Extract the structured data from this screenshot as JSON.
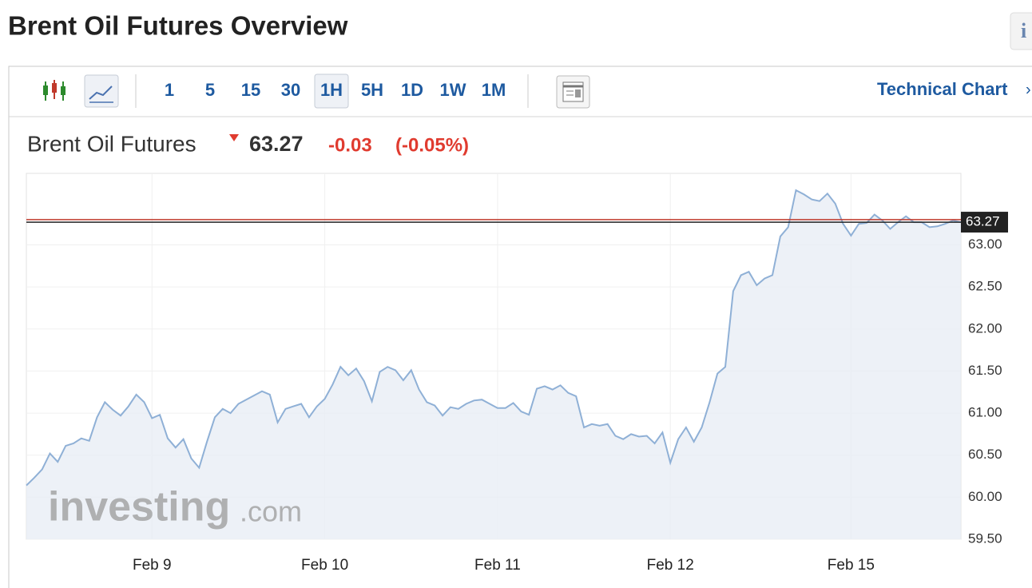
{
  "header": {
    "title": "Brent Oil Futures Overview",
    "info": "i"
  },
  "toolbar": {
    "intervals": [
      "1",
      "5",
      "15",
      "30",
      "1H",
      "5H",
      "1D",
      "1W",
      "1M"
    ],
    "active_interval": "1H",
    "technical_chart": "Technical Chart",
    "chevron": "›"
  },
  "quote": {
    "name": "Brent Oil Futures",
    "price": 63.27,
    "change": -0.03,
    "change_pct": "(-0.05%)"
  },
  "watermark": {
    "brand": "investing",
    "suffix": ".com"
  },
  "chart_data": {
    "type": "area",
    "color": "#8fb0d6",
    "fill": "#e8edf5",
    "categories": [
      null,
      null,
      null,
      null,
      null,
      null,
      null,
      null,
      null,
      null,
      null,
      null,
      null,
      null,
      null,
      null,
      "Feb 9",
      null,
      null,
      null,
      null,
      null,
      null,
      null,
      null,
      null,
      null,
      null,
      null,
      null,
      null,
      null,
      null,
      null,
      null,
      null,
      null,
      null,
      "Feb 10",
      null,
      null,
      null,
      null,
      null,
      null,
      null,
      null,
      null,
      null,
      null,
      null,
      null,
      null,
      null,
      null,
      null,
      null,
      null,
      null,
      null,
      "Feb 11",
      null,
      null,
      null,
      null,
      null,
      null,
      null,
      null,
      null,
      null,
      null,
      null,
      null,
      null,
      null,
      null,
      null,
      null,
      null,
      null,
      null,
      "Feb 12",
      null,
      null,
      null,
      null,
      null,
      null,
      null,
      null,
      null,
      null,
      null,
      null,
      null,
      null,
      null,
      null,
      null,
      null,
      null,
      null,
      null,
      null,
      "Feb 15",
      null,
      null,
      null,
      null,
      null,
      null,
      null,
      null,
      null,
      null,
      null,
      null,
      null,
      null
    ],
    "values": [
      60.14,
      60.23,
      60.33,
      60.52,
      60.42,
      60.61,
      60.64,
      60.7,
      60.67,
      60.95,
      61.13,
      61.04,
      60.97,
      61.08,
      61.22,
      61.13,
      60.94,
      60.98,
      60.7,
      60.59,
      60.69,
      60.46,
      60.35,
      60.66,
      60.95,
      61.05,
      61.0,
      61.11,
      61.16,
      61.21,
      61.26,
      61.22,
      60.89,
      61.05,
      61.08,
      61.11,
      60.95,
      61.08,
      61.17,
      61.34,
      61.55,
      61.45,
      61.53,
      61.38,
      61.14,
      61.49,
      61.55,
      61.51,
      61.39,
      61.51,
      61.28,
      61.13,
      61.09,
      60.97,
      61.07,
      61.05,
      61.11,
      61.15,
      61.16,
      61.11,
      61.06,
      61.06,
      61.12,
      61.02,
      60.98,
      61.29,
      61.32,
      61.28,
      61.33,
      61.24,
      61.2,
      60.83,
      60.87,
      60.85,
      60.87,
      60.73,
      60.69,
      60.75,
      60.72,
      60.73,
      60.64,
      60.77,
      60.41,
      60.69,
      60.83,
      60.66,
      60.83,
      61.13,
      61.47,
      61.55,
      62.45,
      62.64,
      62.68,
      62.52,
      62.6,
      62.64,
      63.1,
      63.21,
      63.65,
      63.6,
      63.54,
      63.52,
      63.61,
      63.49,
      63.25,
      63.11,
      63.25,
      63.26,
      63.36,
      63.29,
      63.19,
      63.27,
      63.34,
      63.27,
      63.27,
      63.21,
      63.22,
      63.25,
      63.29,
      63.27
    ],
    "ylim": [
      59.5,
      63.85
    ],
    "yticks": [
      {
        "value": 59.5,
        "label": "59.50"
      },
      {
        "value": 60,
        "label": "60.00"
      },
      {
        "value": 60.5,
        "label": "60.50"
      },
      {
        "value": 61,
        "label": "61.00"
      },
      {
        "value": 61.5,
        "label": "61.50"
      },
      {
        "value": 62,
        "label": "62.00"
      },
      {
        "value": 62.5,
        "label": "62.50"
      },
      {
        "value": 63,
        "label": "63.00"
      }
    ],
    "current_price": {
      "value": 63.27,
      "label": "63.27",
      "color": "#222222"
    },
    "previous_close": {
      "value": 63.3,
      "color": "#c0392b"
    },
    "grid": true
  }
}
